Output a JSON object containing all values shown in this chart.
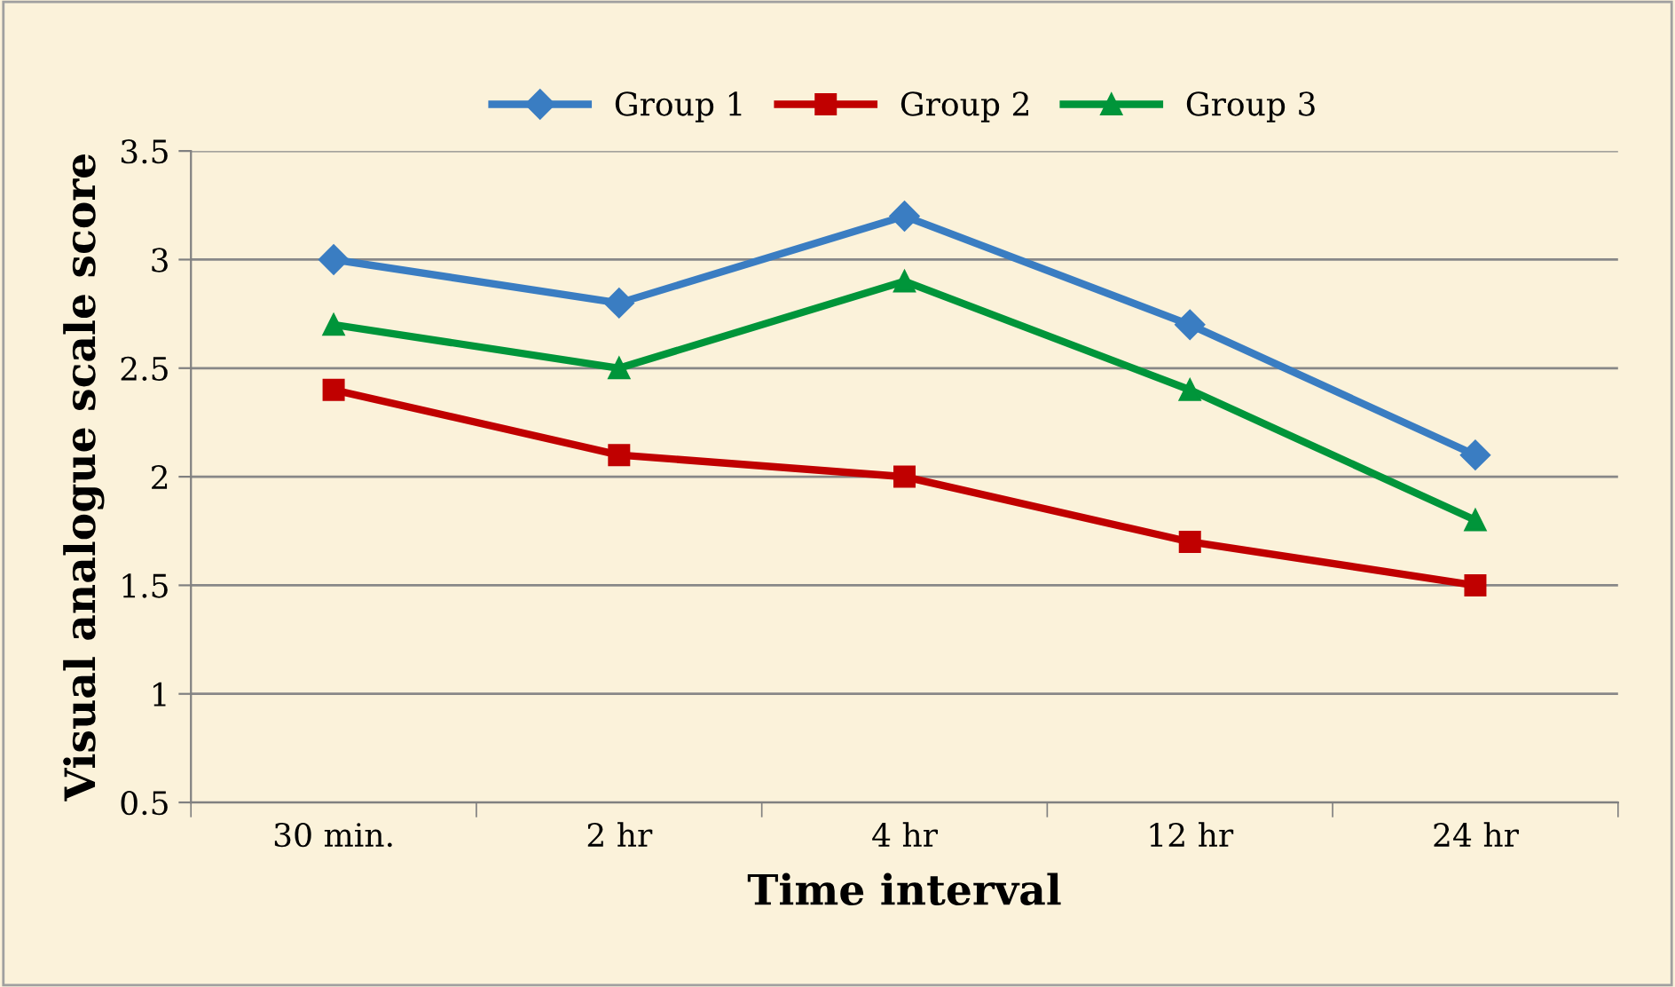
{
  "chart_data": {
    "type": "line",
    "xlabel": "Time interval",
    "ylabel": "Visual analogue scale score",
    "categories": [
      "30 min.",
      "2 hr",
      "4 hr",
      "12 hr",
      "24 hr"
    ],
    "series": [
      {
        "name": "Group 1",
        "color": "#3a7dc2",
        "marker": "diamond",
        "values": [
          3.0,
          2.8,
          3.2,
          2.7,
          2.1
        ]
      },
      {
        "name": "Group 2",
        "color": "#c00000",
        "marker": "square",
        "values": [
          2.4,
          2.1,
          2.0,
          1.7,
          1.5
        ]
      },
      {
        "name": "Group 3",
        "color": "#00953a",
        "marker": "triangle",
        "values": [
          2.7,
          2.5,
          2.9,
          2.4,
          1.8
        ]
      }
    ],
    "ylim": [
      0.5,
      3.5
    ],
    "yticks": [
      0.5,
      1,
      1.5,
      2,
      2.5,
      3,
      3.5
    ],
    "grid": "y",
    "legend": "top",
    "line_style": "solid"
  }
}
